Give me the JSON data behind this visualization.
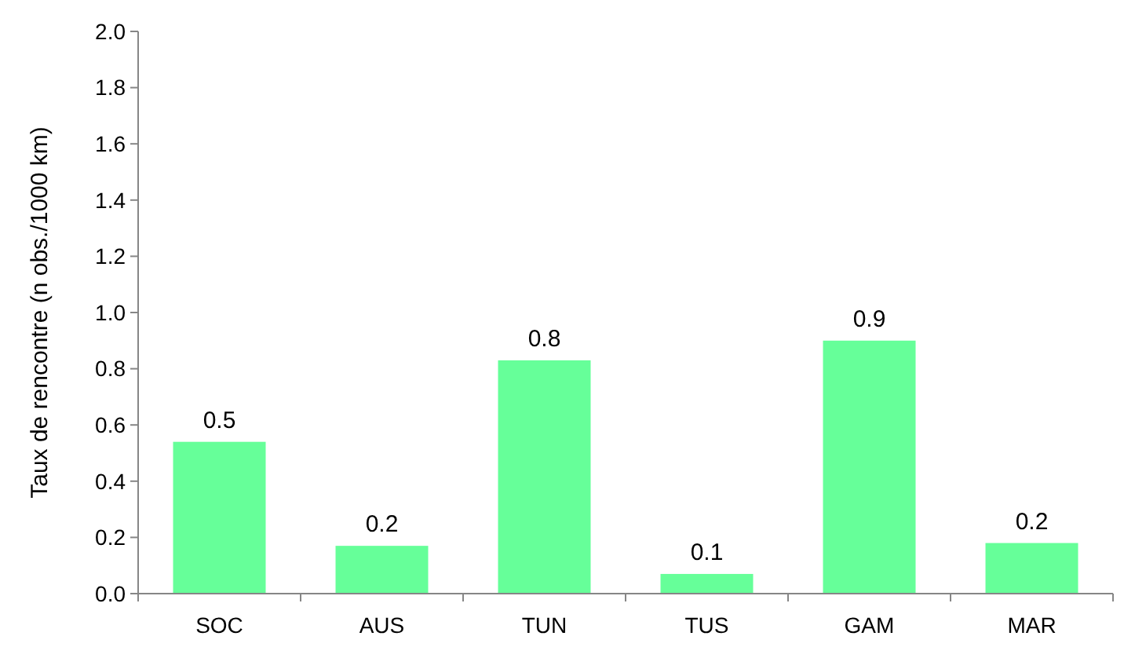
{
  "chart_data": {
    "type": "bar",
    "ylabel": "Taux de rencontre (n obs./1000 km)",
    "categories": [
      "SOC",
      "AUS",
      "TUN",
      "TUS",
      "GAM",
      "MAR"
    ],
    "values": [
      0.54,
      0.17,
      0.83,
      0.07,
      0.9,
      0.18
    ],
    "value_labels": [
      "0.5",
      "0.2",
      "0.8",
      "0.1",
      "0.9",
      "0.2"
    ],
    "color": "#66ff99",
    "ylim": [
      0,
      2
    ],
    "yticks": [
      {
        "value": 0,
        "label": "0.0"
      },
      {
        "value": 0.2,
        "label": "0.2"
      },
      {
        "value": 0.4,
        "label": "0.4"
      },
      {
        "value": 0.6,
        "label": "0.6"
      },
      {
        "value": 0.8,
        "label": "0.8"
      },
      {
        "value": 1,
        "label": "1.0"
      },
      {
        "value": 1.2,
        "label": "1.2"
      },
      {
        "value": 1.4,
        "label": "1.4"
      },
      {
        "value": 1.6,
        "label": "1.6"
      },
      {
        "value": 1.8,
        "label": "1.8"
      },
      {
        "value": 2,
        "label": "2.0"
      }
    ],
    "grid": false
  }
}
